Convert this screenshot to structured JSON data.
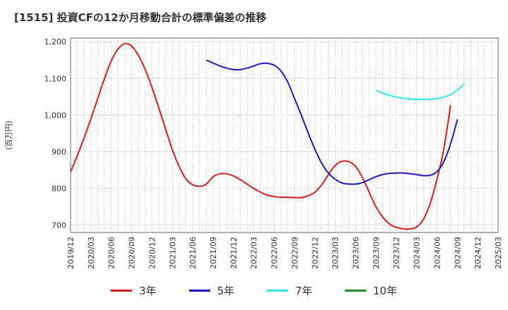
{
  "title": "[1515]  投資CFの12か月移動合計の標準偏差の推移",
  "chart_data": {
    "type": "line",
    "ylabel": "(百万円)",
    "ylim": [
      680,
      1210
    ],
    "yticks": [
      700,
      800,
      900,
      1000,
      1100,
      1200
    ],
    "ytick_labels": [
      "700",
      "800",
      "900",
      "1,000",
      "1,100",
      "1,200"
    ],
    "x_start": "2019-12",
    "x_end": "2025-03",
    "xtick_labels": [
      "2019/12",
      "2020/03",
      "2020/06",
      "2020/09",
      "2020/12",
      "2021/03",
      "2021/06",
      "2021/09",
      "2021/12",
      "2022/03",
      "2022/06",
      "2022/09",
      "2022/12",
      "2023/03",
      "2023/06",
      "2023/09",
      "2023/12",
      "2024/03",
      "2024/06",
      "2024/09",
      "2024/12",
      "2025/03"
    ],
    "grid": true,
    "legend_position": "bottom",
    "series": [
      {
        "name": "3年",
        "color": "#dd1c1c",
        "start": "2019-12",
        "values": [
          845,
          890,
          938,
          990,
          1045,
          1100,
          1148,
          1180,
          1195,
          1188,
          1163,
          1124,
          1075,
          1020,
          962,
          906,
          860,
          826,
          810,
          806,
          812,
          832,
          840,
          840,
          834,
          824,
          812,
          800,
          790,
          782,
          778,
          776,
          776,
          775,
          775,
          780,
          790,
          810,
          838,
          863,
          874,
          873,
          860,
          830,
          790,
          750,
          722,
          703,
          694,
          690,
          690,
          695,
          716,
          760,
          826,
          908,
          1027
        ]
      },
      {
        "name": "5年",
        "color": "#1a1acc",
        "start": "2021-08",
        "values": [
          1150,
          1142,
          1134,
          1128,
          1124,
          1124,
          1128,
          1134,
          1140,
          1141,
          1136,
          1120,
          1090,
          1045,
          1000,
          952,
          907,
          869,
          842,
          825,
          815,
          812,
          812,
          816,
          824,
          832,
          838,
          841,
          842,
          842,
          840,
          838,
          835,
          836,
          846,
          873,
          922,
          988
        ]
      },
      {
        "name": "7年",
        "color": "#2ee8ee",
        "start": "2023-09",
        "values": [
          1068,
          1060,
          1054,
          1049,
          1046,
          1044,
          1043,
          1043,
          1043,
          1045,
          1049,
          1056,
          1068,
          1085
        ]
      },
      {
        "name": "10年",
        "color": "#228b22",
        "start": "2023-09",
        "values": []
      }
    ]
  }
}
